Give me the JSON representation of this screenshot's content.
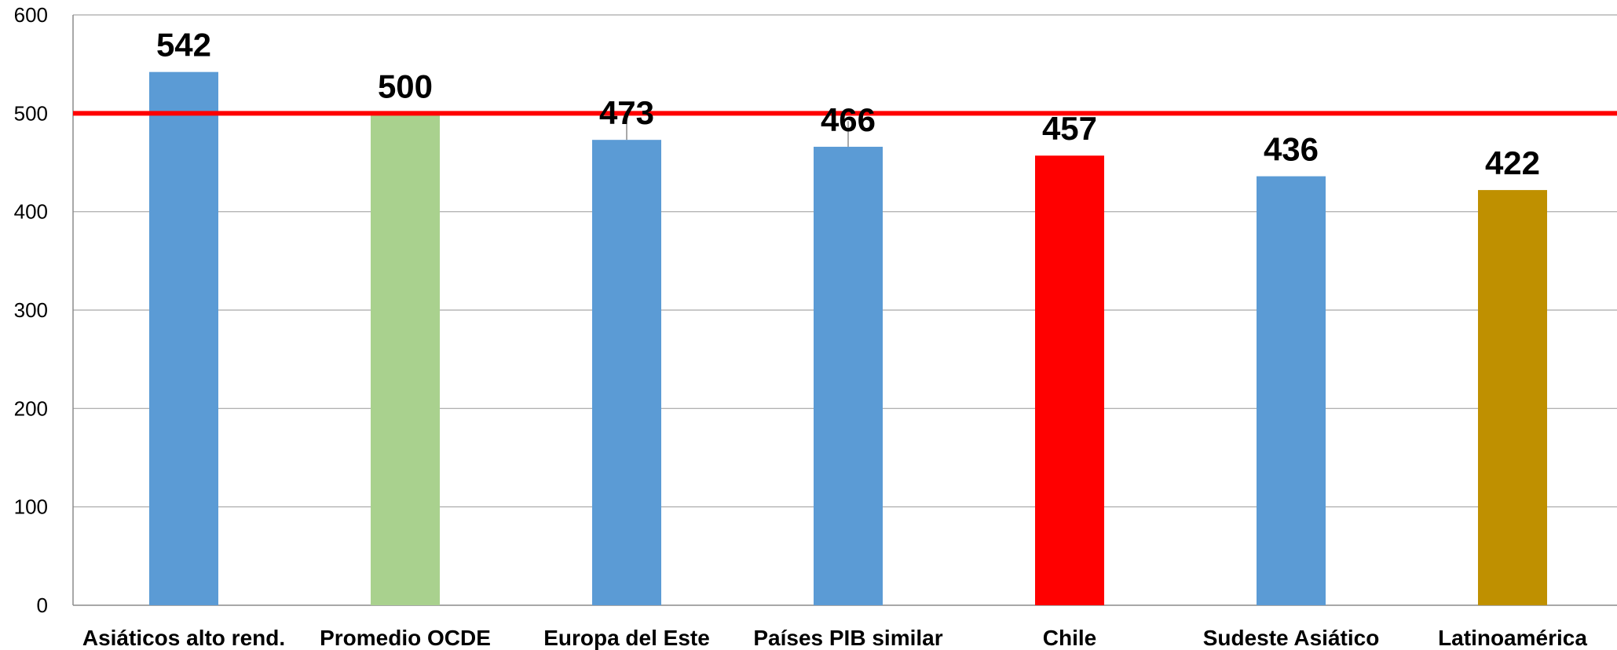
{
  "chart_data": {
    "type": "bar",
    "title": "",
    "xlabel": "",
    "ylabel": "",
    "ylim": [
      0,
      600
    ],
    "yticks": [
      0,
      100,
      200,
      300,
      400,
      500,
      600
    ],
    "grid": true,
    "legend": "none",
    "categories": [
      "Asiáticos alto rend.",
      "Promedio OCDE",
      "Europa del Este",
      "Países PIB similar",
      "Chile",
      "Sudeste Asiático",
      "Latinoamérica"
    ],
    "values": [
      542,
      500,
      473,
      466,
      457,
      436,
      422
    ],
    "data_labels": [
      "542",
      "500",
      "473",
      "466",
      "457",
      "436",
      "422"
    ],
    "bar_colors": [
      "#5b9bd5",
      "#a9d18e",
      "#5b9bd5",
      "#5b9bd5",
      "#ff0000",
      "#5b9bd5",
      "#bf9000"
    ],
    "reference_line": {
      "value": 500,
      "color": "#ff0000"
    },
    "error_bars": [
      {
        "category": "Europa del Este",
        "high": 496
      },
      {
        "category": "Países PIB similar",
        "high": 492
      }
    ],
    "gridline_color": "#a6a6a6"
  }
}
